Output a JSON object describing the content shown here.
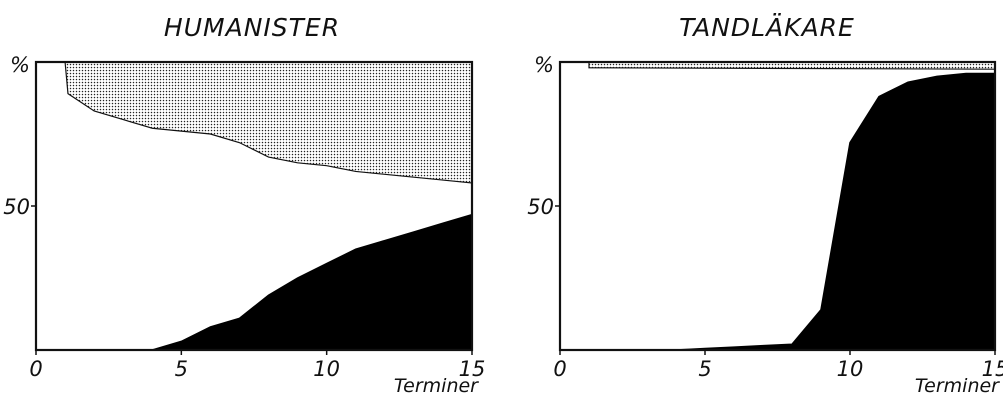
{
  "chart_data": [
    {
      "type": "area",
      "title": "HUMANISTER",
      "xlabel": "Terminer",
      "ylabel_tick": "%",
      "xlim": [
        0,
        15
      ],
      "ylim": [
        0,
        100
      ],
      "xticks": [
        0,
        5,
        10,
        15
      ],
      "yticks": [
        50
      ],
      "series": [
        {
          "fill": "#000000",
          "x": [
            1,
            2,
            3,
            4,
            5,
            6,
            7,
            8,
            9,
            10,
            11,
            12,
            13,
            14,
            15
          ],
          "values": [
            0,
            0,
            0,
            0,
            3,
            8,
            11,
            19,
            25,
            30,
            35,
            38,
            41,
            44,
            47
          ]
        },
        {
          "fill": "dotted",
          "x": [
            1,
            1.1,
            2,
            3,
            4,
            5,
            6,
            7,
            8,
            9,
            10,
            11,
            12,
            13,
            14,
            15
          ],
          "values": [
            100,
            89,
            83,
            80,
            77,
            76,
            75,
            72,
            67,
            65,
            64,
            62,
            61,
            60,
            59,
            58
          ]
        }
      ]
    },
    {
      "type": "area",
      "title": "TANDLÄKARE",
      "xlabel": "Terminer",
      "ylabel_tick": "%",
      "xlim": [
        0,
        15
      ],
      "ylim": [
        0,
        100
      ],
      "xticks": [
        0,
        5,
        10,
        15
      ],
      "yticks": [
        50
      ],
      "series": [
        {
          "fill": "#000000",
          "x": [
            1,
            2,
            3,
            4,
            5,
            6,
            7,
            8,
            9,
            10,
            11,
            12,
            13,
            14,
            15
          ],
          "values": [
            0,
            0,
            0,
            0,
            0.5,
            1,
            1.5,
            2,
            14,
            72,
            88,
            93,
            95,
            96,
            96
          ]
        },
        {
          "fill": "dotted",
          "x": [
            1,
            15
          ],
          "values": [
            98,
            97.5
          ]
        }
      ]
    }
  ]
}
